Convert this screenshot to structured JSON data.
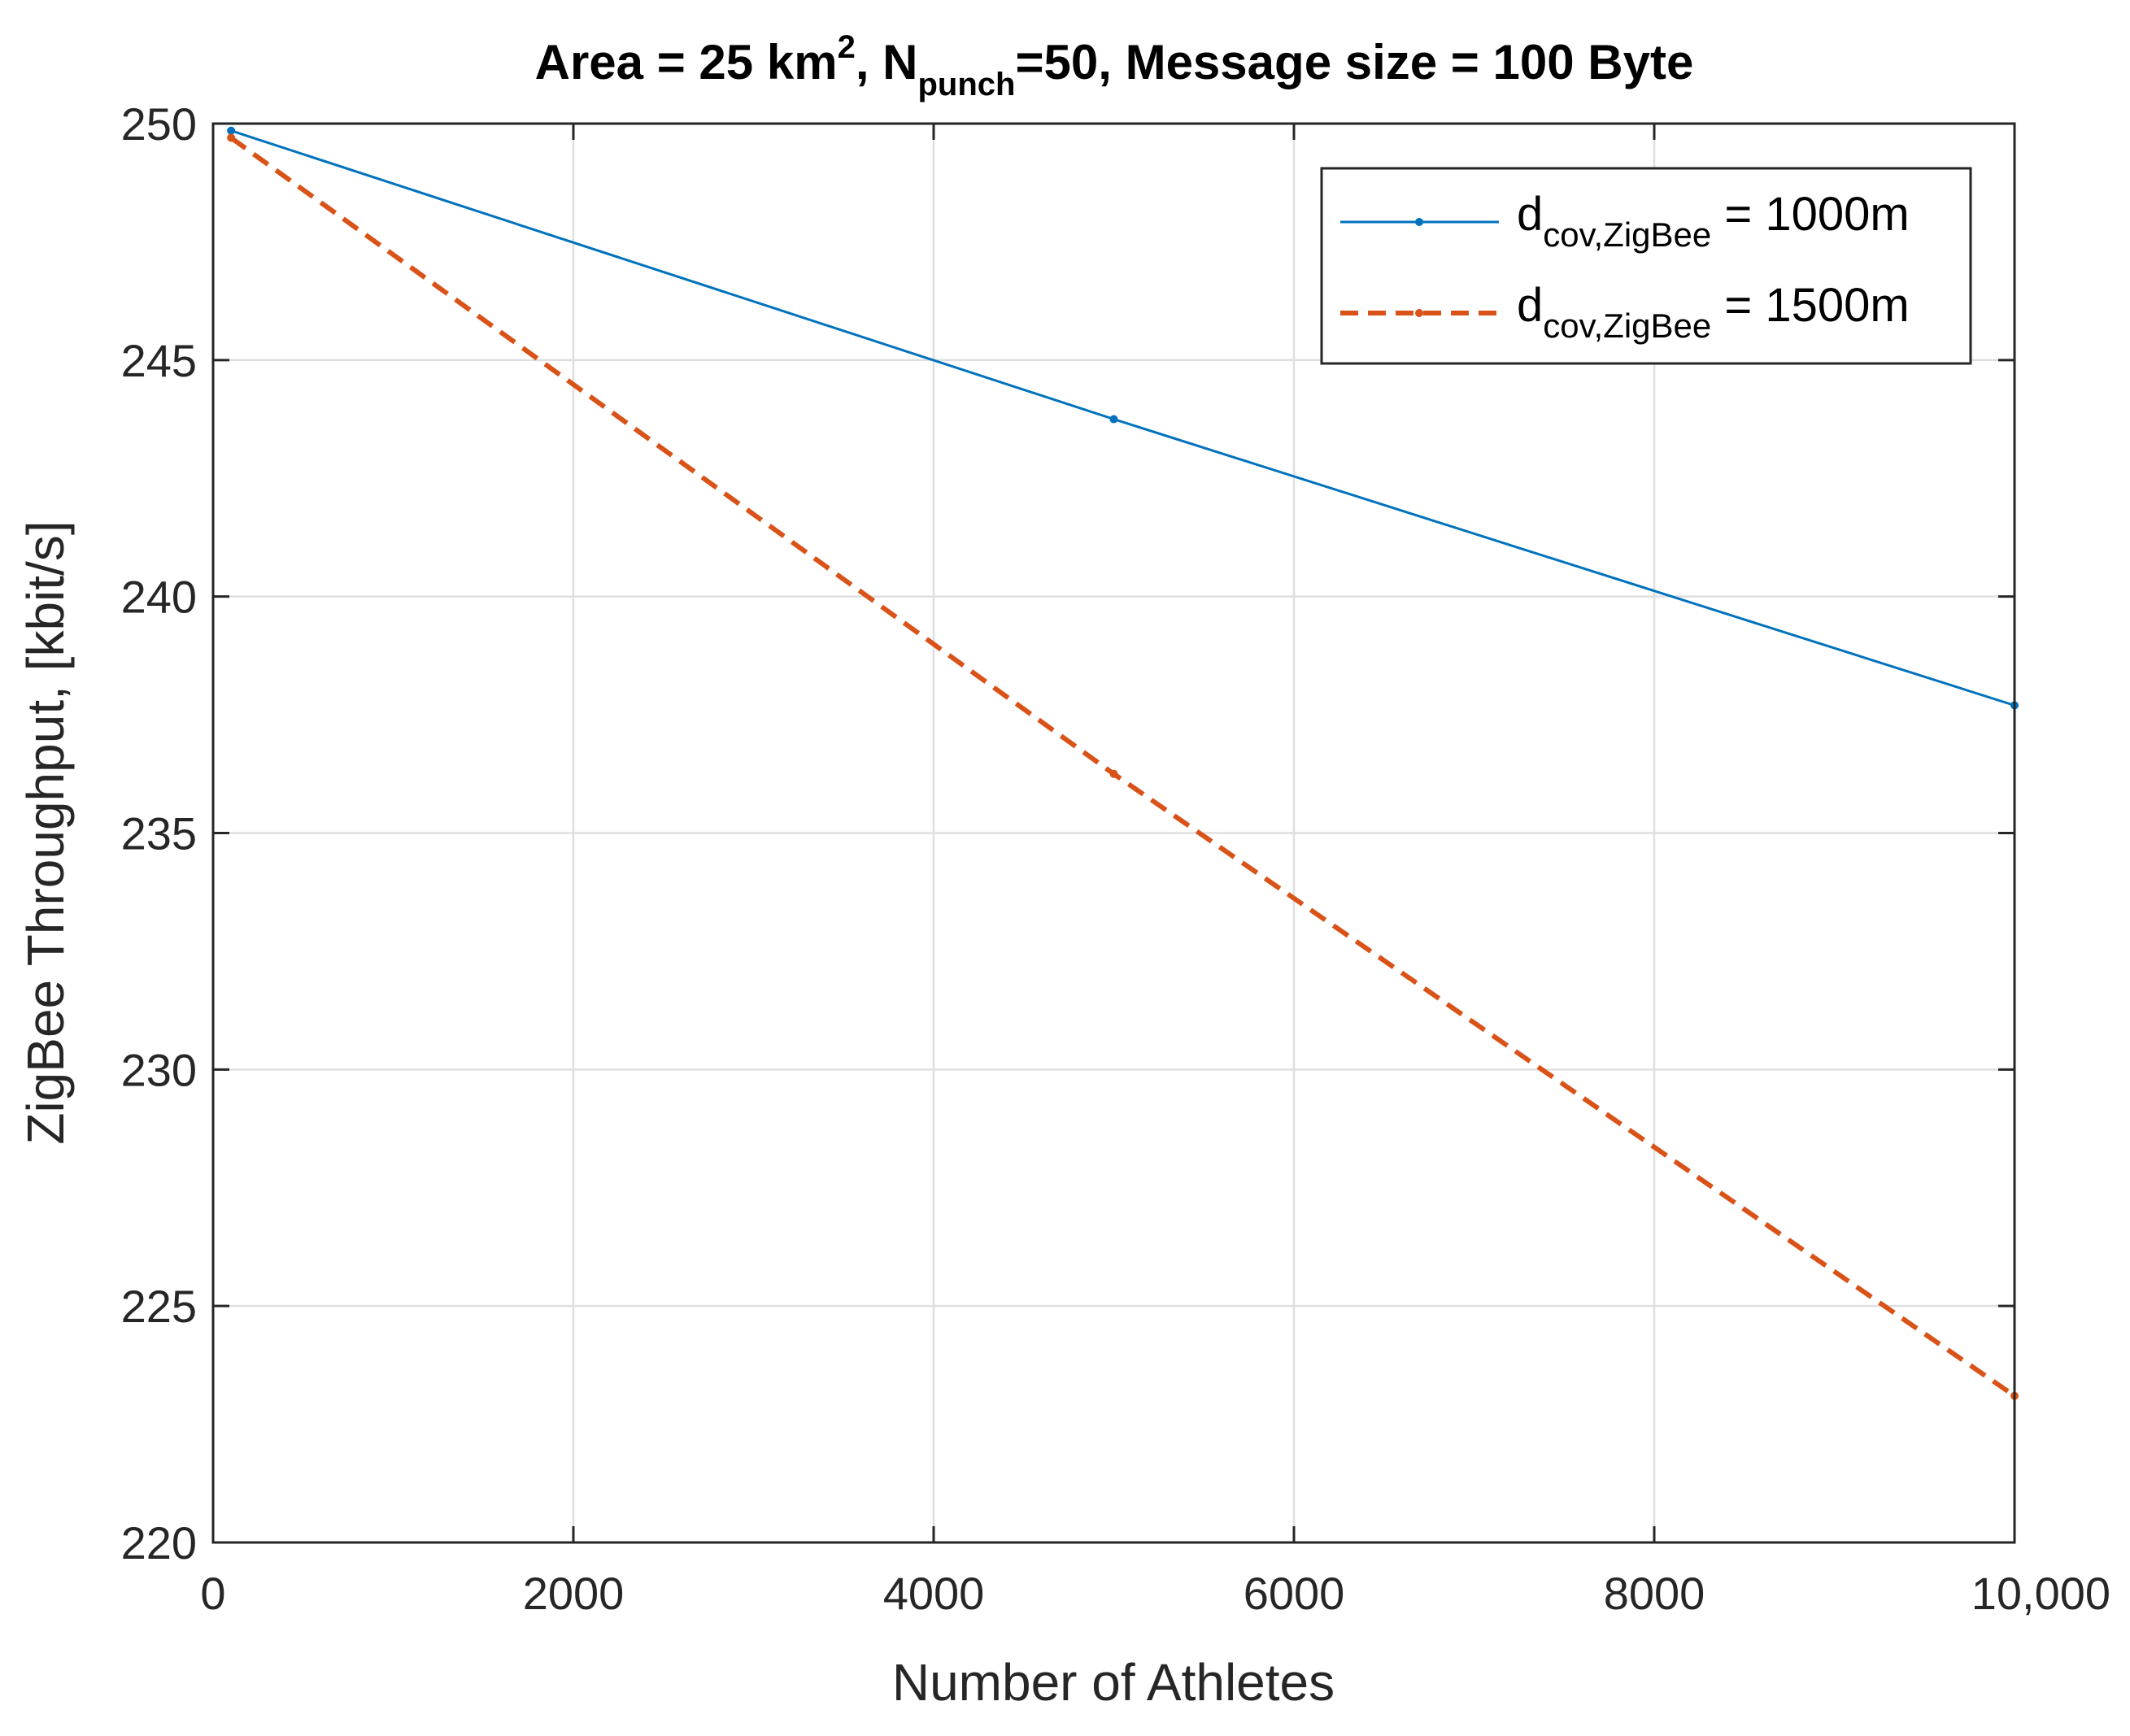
{
  "chart_data": {
    "type": "line",
    "title": {
      "prefix": "Area = 25 km",
      "sup": "2",
      "mid": ", N",
      "sub": "punch",
      "suffix": "=50, Message size = 100 Byte"
    },
    "xlabel": "Number of Athletes",
    "ylabel": "ZigBee Throughput, [kbit/s]",
    "xlim": [
      0,
      10000
    ],
    "ylim": [
      220,
      250
    ],
    "xticks": [
      0,
      2000,
      4000,
      6000,
      8000,
      10000
    ],
    "xtick_labels": [
      "0",
      "2000",
      "4000",
      "6000",
      "8000",
      "10,000"
    ],
    "yticks": [
      220,
      225,
      230,
      235,
      240,
      245,
      250
    ],
    "ytick_labels": [
      "220",
      "225",
      "230",
      "235",
      "240",
      "245",
      "250"
    ],
    "grid": true,
    "legend_position": "top-right",
    "series": [
      {
        "legend": {
          "main": "d",
          "sub": "cov,ZigBee",
          "rest": " = 1000m"
        },
        "color": "#0072BD",
        "line_style": "solid",
        "marker": "dot",
        "x": [
          100,
          5000,
          10000
        ],
        "y": [
          249.85,
          243.75,
          237.7
        ]
      },
      {
        "legend": {
          "main": "d",
          "sub": "cov,ZigBee",
          "rest": " = 1500m"
        },
        "color": "#D95319",
        "line_style": "dashed",
        "marker": "dot",
        "x": [
          100,
          5000,
          10000
        ],
        "y": [
          249.7,
          236.25,
          223.1
        ]
      }
    ]
  }
}
